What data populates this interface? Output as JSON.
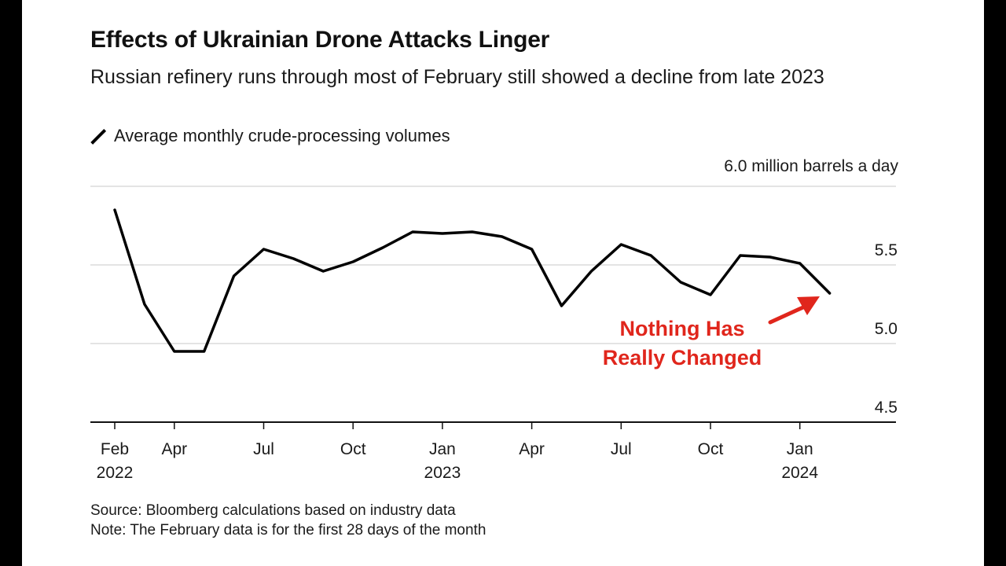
{
  "chart_data": {
    "type": "line",
    "title": "Effects of Ukrainian Drone Attacks Linger",
    "subtitle": "Russian refinery runs through most of February still showed a decline from late 2023",
    "legend": "Average monthly crude-processing volumes",
    "unit_label": "6.0 million barrels a day",
    "ylim": [
      4.5,
      6.0
    ],
    "y_ticks": [
      {
        "value": 5.5,
        "label": "5.5"
      },
      {
        "value": 5.0,
        "label": "5.0"
      },
      {
        "value": 4.5,
        "label": "4.5"
      }
    ],
    "x_ticks": [
      {
        "index": 0,
        "line1": "Feb",
        "line2": "2022"
      },
      {
        "index": 2,
        "line1": "Apr",
        "line2": ""
      },
      {
        "index": 5,
        "line1": "Jul",
        "line2": ""
      },
      {
        "index": 8,
        "line1": "Oct",
        "line2": ""
      },
      {
        "index": 11,
        "line1": "Jan",
        "line2": "2023"
      },
      {
        "index": 14,
        "line1": "Apr",
        "line2": ""
      },
      {
        "index": 17,
        "line1": "Jul",
        "line2": ""
      },
      {
        "index": 20,
        "line1": "Oct",
        "line2": ""
      },
      {
        "index": 23,
        "line1": "Jan",
        "line2": "2024"
      }
    ],
    "series": [
      {
        "name": "Average monthly crude-processing volumes",
        "x": [
          "Feb 2022",
          "Mar 2022",
          "Apr 2022",
          "May 2022",
          "Jun 2022",
          "Jul 2022",
          "Aug 2022",
          "Sep 2022",
          "Oct 2022",
          "Nov 2022",
          "Dec 2022",
          "Jan 2023",
          "Feb 2023",
          "Mar 2023",
          "Apr 2023",
          "May 2023",
          "Jun 2023",
          "Jul 2023",
          "Aug 2023",
          "Sep 2023",
          "Oct 2023",
          "Nov 2023",
          "Dec 2023",
          "Jan 2024",
          "Feb 2024"
        ],
        "values": [
          5.85,
          5.25,
          4.95,
          4.95,
          5.43,
          5.6,
          5.54,
          5.46,
          5.52,
          5.61,
          5.71,
          5.7,
          5.71,
          5.68,
          5.6,
          5.24,
          5.46,
          5.63,
          5.56,
          5.39,
          5.31,
          5.56,
          5.55,
          5.51,
          5.32
        ]
      }
    ],
    "annotation": {
      "line1": "Nothing Has",
      "line2": "Really Changed",
      "color": "#e0261c"
    }
  },
  "footer": {
    "source": "Source: Bloomberg calculations based on industry data",
    "note": "Note: The February data is for the first 28 days of the month"
  }
}
